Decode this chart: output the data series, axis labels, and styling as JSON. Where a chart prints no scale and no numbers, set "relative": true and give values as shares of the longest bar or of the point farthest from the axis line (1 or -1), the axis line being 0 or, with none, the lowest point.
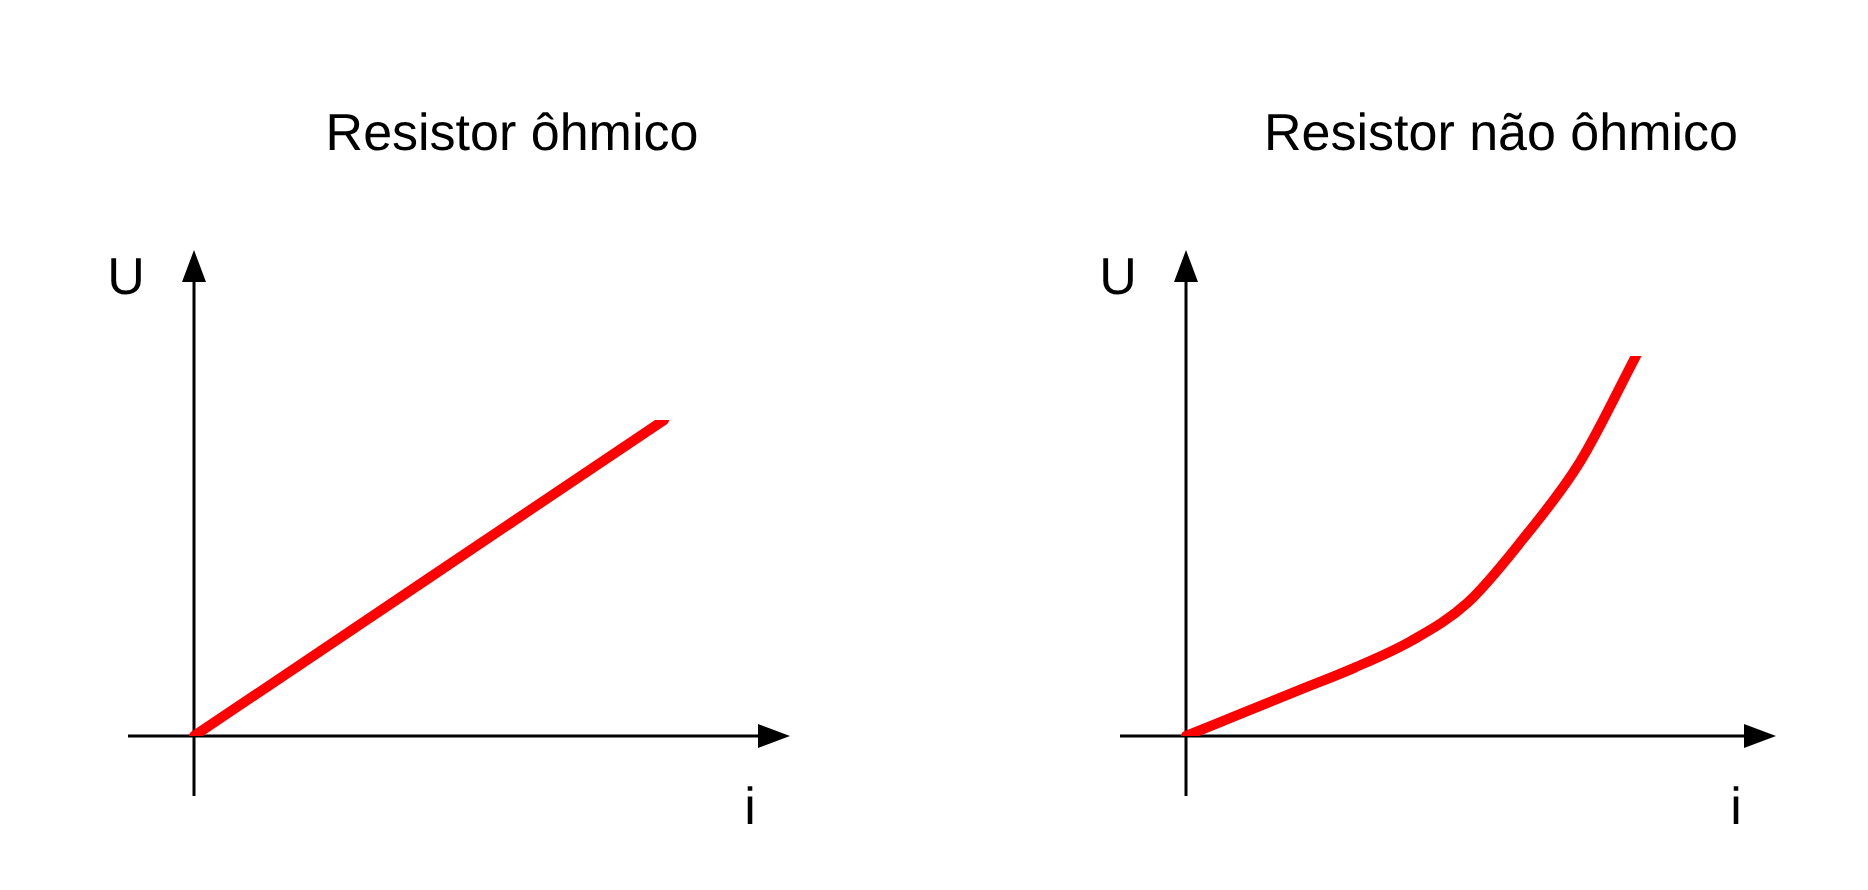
{
  "chart_data": [
    {
      "type": "line",
      "title": "Resistor ôhmico",
      "xlabel": "i",
      "ylabel": "U",
      "relative": true,
      "categories": [
        null,
        null
      ],
      "values": [
        0,
        1
      ],
      "color": "#ff0000"
    },
    {
      "type": "line",
      "title": "Resistor não ôhmico",
      "xlabel": "i",
      "ylabel": "U",
      "relative": true,
      "categories": [
        null,
        null,
        null,
        null,
        null,
        null,
        null,
        null,
        null
      ],
      "values": [
        0,
        0.06,
        0.12,
        0.18,
        0.25,
        0.35,
        0.52,
        0.72,
        1
      ],
      "color": "#ff0000"
    }
  ]
}
